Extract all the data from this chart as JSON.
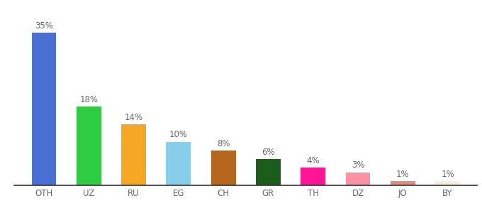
{
  "categories": [
    "OTH",
    "UZ",
    "RU",
    "EG",
    "CH",
    "GR",
    "TH",
    "DZ",
    "JO",
    "BY"
  ],
  "values": [
    35,
    18,
    14,
    10,
    8,
    6,
    4,
    3,
    1,
    1
  ],
  "labels": [
    "35%",
    "18%",
    "14%",
    "10%",
    "8%",
    "6%",
    "4%",
    "3%",
    "1%",
    "1%"
  ],
  "bar_colors": [
    "#4a6fd4",
    "#2ecc40",
    "#f5a623",
    "#87ceeb",
    "#b5651d",
    "#1a5c1a",
    "#ff1493",
    "#ff91a4",
    "#e8897a",
    "#f5f0dc"
  ],
  "ylim": [
    0,
    40
  ],
  "background_color": "#ffffff",
  "label_fontsize": 8.5,
  "tick_fontsize": 8.5,
  "bar_width": 0.55,
  "label_color": "#666666",
  "tick_color": "#666666",
  "spine_color": "#333333"
}
